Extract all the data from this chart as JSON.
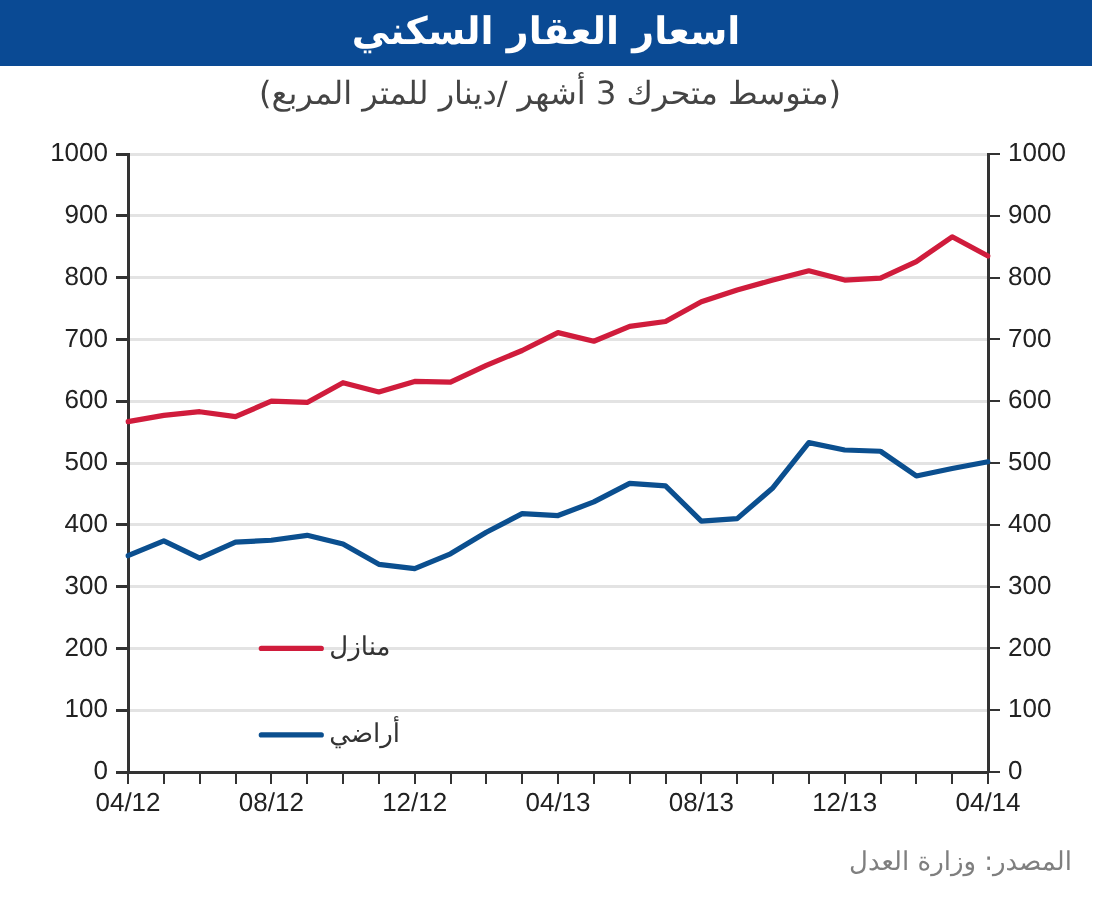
{
  "chart_data": {
    "type": "line",
    "title": "اسعار العقار السكني",
    "subtitle": "(متوسط متحرك 3 أشهر /دينار للمتر المربع)",
    "categories": [
      "04/12",
      null,
      null,
      null,
      "08/12",
      null,
      null,
      null,
      "12/12",
      null,
      null,
      null,
      "04/13",
      null,
      null,
      null,
      "08/13",
      null,
      null,
      null,
      "12/13",
      null,
      null,
      null,
      "04/14"
    ],
    "series": [
      {
        "name": "منازل",
        "color": "#d01c3c",
        "values": [
          567,
          577,
          583,
          575,
          600,
          598,
          630,
          615,
          632,
          631,
          658,
          682,
          711,
          697,
          721,
          729,
          761,
          780,
          796,
          811,
          796,
          799,
          826,
          866,
          835
        ]
      },
      {
        "name": "أراضي",
        "color": "#0b4f8f",
        "values": [
          350,
          374,
          346,
          372,
          375,
          383,
          369,
          336,
          329,
          353,
          388,
          418,
          415,
          437,
          467,
          463,
          406,
          410,
          460,
          533,
          521,
          519,
          479,
          491,
          502
        ]
      }
    ],
    "ylim": [
      0,
      1000
    ],
    "yticks": [
      0,
      100,
      200,
      300,
      400,
      500,
      600,
      700,
      800,
      900,
      1000
    ],
    "y2lim": [
      0,
      1000
    ],
    "y2ticks": [
      0,
      100,
      200,
      300,
      400,
      500,
      600,
      700,
      800,
      900,
      1000
    ],
    "grid": "y",
    "legend": "bottom left",
    "marker": "none",
    "line_style": "solid",
    "annotations": [
      "المصدر: وزارة العدل"
    ]
  }
}
